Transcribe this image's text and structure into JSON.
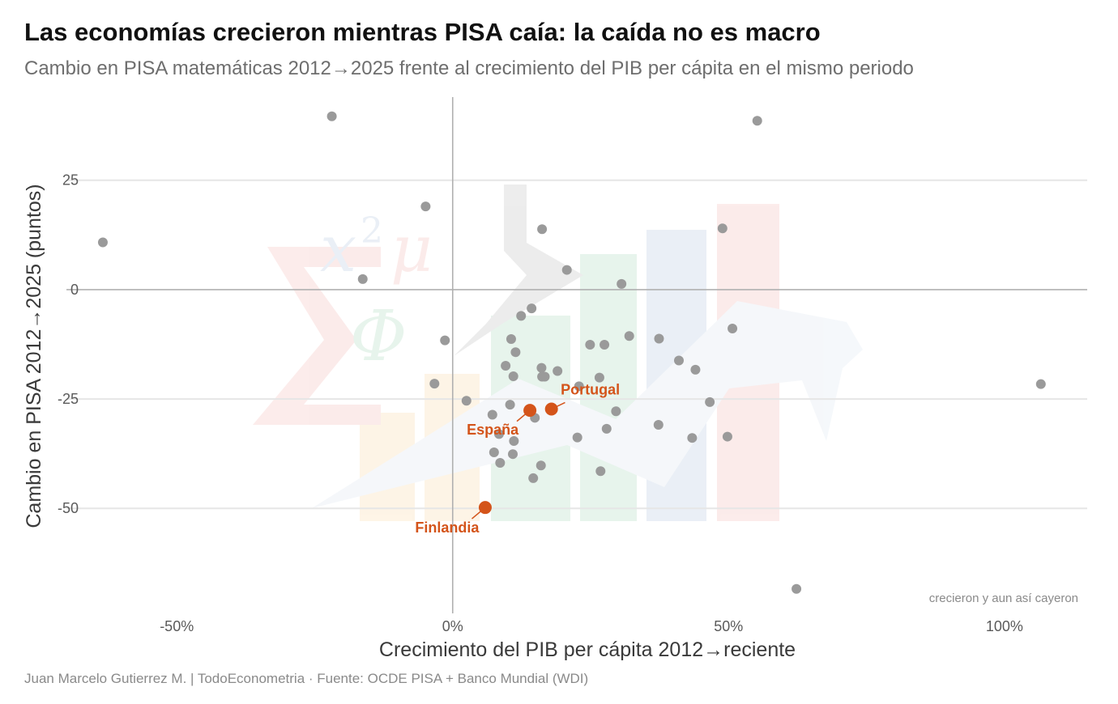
{
  "header": {
    "title": "Las economías crecieron mientras PISA caía: la caída no es macro",
    "subtitle": "Cambio en PISA matemáticas 2012→2025 frente al crecimiento del PIB per cápita en el mismo periodo"
  },
  "footer": {
    "caption": "Juan Marcelo Gutierrez M. | TodoEconometria  ·  Fuente: OCDE PISA + Banco Mundial (WDI)"
  },
  "chart_data": {
    "type": "scatter",
    "xlabel": "Crecimiento del PIB per cápita 2012→reciente",
    "ylabel": "Cambio en PISA 2012→2025 (puntos)",
    "xlim": [
      -70,
      115
    ],
    "ylim": [
      -74,
      44
    ],
    "x_ticks": [
      {
        "value": -50,
        "label": "-50%"
      },
      {
        "value": 0,
        "label": "0%"
      },
      {
        "value": 50,
        "label": "50%"
      },
      {
        "value": 100,
        "label": "100%"
      }
    ],
    "y_ticks": [
      {
        "value": 25,
        "label": "25"
      },
      {
        "value": 0,
        "label": "0"
      },
      {
        "value": -25,
        "label": "-25"
      },
      {
        "value": -50,
        "label": "-50"
      }
    ],
    "grid": "horizontal",
    "reference_lines": {
      "x": 0,
      "y": 0
    },
    "corner_annotation": "crecieron y aun así cayeron",
    "colors": {
      "points": "#9a9a9a",
      "highlight": "#d4541a",
      "grid": "#e6e6e6",
      "zero_line": "#b0b0b0"
    },
    "points": [
      {
        "x": -63.4,
        "y": 10.8
      },
      {
        "x": -21.9,
        "y": 39.6
      },
      {
        "x": -16.3,
        "y": 2.4
      },
      {
        "x": -4.9,
        "y": 19.0
      },
      {
        "x": -3.3,
        "y": -21.5
      },
      {
        "x": -1.4,
        "y": -11.6
      },
      {
        "x": 2.5,
        "y": -25.4
      },
      {
        "x": 7.2,
        "y": -28.6
      },
      {
        "x": 7.5,
        "y": -37.2
      },
      {
        "x": 8.4,
        "y": -33.0
      },
      {
        "x": 8.6,
        "y": -39.6
      },
      {
        "x": 9.6,
        "y": -17.4
      },
      {
        "x": 10.4,
        "y": -26.3
      },
      {
        "x": 10.6,
        "y": -11.3
      },
      {
        "x": 10.9,
        "y": -37.6
      },
      {
        "x": 11.0,
        "y": -19.8
      },
      {
        "x": 11.1,
        "y": -34.6
      },
      {
        "x": 11.4,
        "y": -14.3
      },
      {
        "x": 12.4,
        "y": -6.0
      },
      {
        "x": 14.3,
        "y": -4.3
      },
      {
        "x": 14.6,
        "y": -43.1
      },
      {
        "x": 14.9,
        "y": -29.3
      },
      {
        "x": 16.0,
        "y": -40.2
      },
      {
        "x": 16.1,
        "y": -17.9
      },
      {
        "x": 16.2,
        "y": -19.9
      },
      {
        "x": 16.2,
        "y": 13.8
      },
      {
        "x": 16.7,
        "y": -19.9
      },
      {
        "x": 19.0,
        "y": -18.6
      },
      {
        "x": 20.7,
        "y": 4.5
      },
      {
        "x": 22.6,
        "y": -33.8
      },
      {
        "x": 22.9,
        "y": -22.1
      },
      {
        "x": 24.9,
        "y": -12.6
      },
      {
        "x": 26.6,
        "y": -20.1
      },
      {
        "x": 26.8,
        "y": -41.5
      },
      {
        "x": 27.5,
        "y": -12.6
      },
      {
        "x": 27.9,
        "y": -31.8
      },
      {
        "x": 29.6,
        "y": -27.8
      },
      {
        "x": 30.6,
        "y": 1.3
      },
      {
        "x": 32.0,
        "y": -10.6
      },
      {
        "x": 37.3,
        "y": -30.9
      },
      {
        "x": 37.4,
        "y": -11.2
      },
      {
        "x": 41.0,
        "y": -16.2
      },
      {
        "x": 43.4,
        "y": -33.9
      },
      {
        "x": 44.0,
        "y": -18.3
      },
      {
        "x": 46.6,
        "y": -25.7
      },
      {
        "x": 48.9,
        "y": 14.0
      },
      {
        "x": 49.8,
        "y": -33.6
      },
      {
        "x": 50.7,
        "y": -8.9
      },
      {
        "x": 55.2,
        "y": 38.6
      },
      {
        "x": 62.3,
        "y": -68.4
      },
      {
        "x": 106.6,
        "y": -21.6
      }
    ],
    "highlights": [
      {
        "name": "Portugal",
        "x": 17.9,
        "y": -27.3
      },
      {
        "name": "España",
        "x": 14.0,
        "y": -27.6
      },
      {
        "name": "Finlandia",
        "x": 5.9,
        "y": -49.8
      }
    ]
  }
}
